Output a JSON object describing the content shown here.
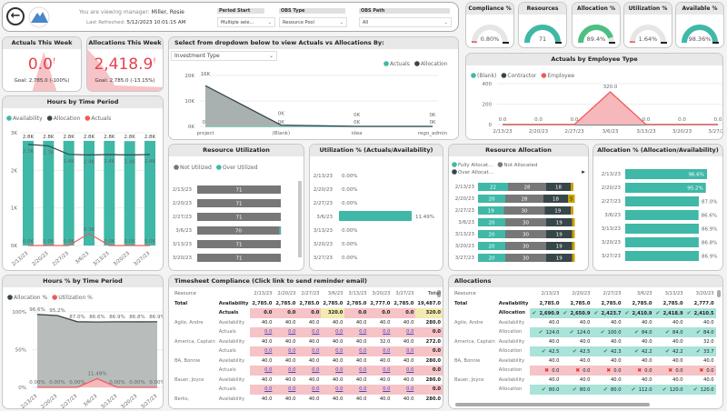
{
  "header": {
    "viewing_prefix": "You are viewing manager:",
    "manager": "Miller, Rosie",
    "refreshed_prefix": "Last Refreshed:",
    "refreshed": "5/12/2023 10:01:15 AM",
    "slicers": [
      {
        "label": "Period Start",
        "value": "Multiple sele..."
      },
      {
        "label": "OBS Type",
        "value": "Resource Pool"
      },
      {
        "label": "OBS Path",
        "value": "All"
      }
    ]
  },
  "kpis": [
    {
      "title": "Compliance %",
      "value": "0.80%",
      "fraction": 0.008,
      "color": "#e85c5c"
    },
    {
      "title": "Resources",
      "value": "71",
      "fraction": 1.0,
      "color": "#3fb8a7"
    },
    {
      "title": "Allocation %",
      "value": "89.4%",
      "fraction": 0.894,
      "color": "#4cbf82"
    },
    {
      "title": "Utilization %",
      "value": "1.64%",
      "fraction": 0.0164,
      "color": "#e85c5c"
    },
    {
      "title": "Available %",
      "value": "98.36%",
      "fraction": 0.9836,
      "color": "#3fb8a7"
    }
  ],
  "cards": [
    {
      "title": "Actuals This Week",
      "value": "0.0",
      "goal": "Goal: 2,785.0 (-100%)",
      "flag": "!"
    },
    {
      "title": "Allocations This Week",
      "value": "2,418.9",
      "goal": "Goal: 2,785.0 (-13.15%)",
      "flag": "!"
    }
  ],
  "colors": {
    "teal": "#3fb8a7",
    "dark": "#374649",
    "red": "#f05a5a",
    "gray": "#777777",
    "yellow": "#c9a100"
  },
  "dates": [
    "2/13/23",
    "2/20/23",
    "2/27/23",
    "3/6/23",
    "3/13/23",
    "3/20/23",
    "3/27/23"
  ],
  "chart_data": [
    {
      "id": "investment",
      "type": "area",
      "title": "Select from dropdown below to view Actuals vs Allocations By:",
      "dropdown": "Investment Type",
      "categories": [
        "project",
        "(Blank)",
        "idea",
        "rego_admin"
      ],
      "ylim": [
        0,
        20000
      ],
      "yticks": [
        "0K",
        "10K",
        "20K"
      ],
      "series": [
        {
          "name": "Actuals",
          "values": [
            0,
            0,
            0,
            0
          ],
          "labels": [
            "0K",
            "0K",
            "0K",
            "0K"
          ]
        },
        {
          "name": "Allocation",
          "values": [
            16000,
            500,
            0,
            0
          ],
          "labels": [
            "16K",
            "0K",
            "0K",
            "0K"
          ]
        }
      ]
    },
    {
      "id": "employee",
      "type": "area",
      "title": "Actuals by Employee Type",
      "ylim": [
        0,
        400
      ],
      "yticks": [
        "0",
        "200",
        "400"
      ],
      "series": [
        {
          "name": "(Blank)",
          "values": [
            0,
            0,
            0,
            0,
            0,
            0,
            0
          ]
        },
        {
          "name": "Contractor",
          "values": [
            0,
            0,
            0,
            0,
            0,
            0,
            0
          ]
        },
        {
          "name": "Employee",
          "values": [
            0,
            0,
            0,
            320,
            0,
            0,
            0
          ],
          "labels": [
            "0.0",
            "0.0",
            "0.0",
            "320.0",
            "0.0",
            "0.0",
            "0.0"
          ]
        }
      ]
    },
    {
      "id": "hours",
      "type": "bar+line",
      "title": "Hours by Time Period",
      "ylim": [
        0,
        3000
      ],
      "yticks": [
        "0K",
        "1K",
        "2K",
        "3K"
      ],
      "series": [
        {
          "name": "Availability",
          "values": [
            2785,
            2785,
            2785,
            2785,
            2785,
            2777,
            2785
          ],
          "labels": [
            "2.8K",
            "2.8K",
            "2.8K",
            "2.8K",
            "2.8K",
            "2.8K",
            "2.8K"
          ]
        },
        {
          "name": "Allocation",
          "values": [
            2690.9,
            2650.9,
            2423.7,
            2410.9,
            2418.9,
            2410.5,
            2418.9
          ],
          "labels": [
            "2.7K",
            "2.7K",
            "2.4K",
            "2.4K",
            "2.4K",
            "2.4K",
            "2.4K"
          ]
        },
        {
          "name": "Actuals",
          "values": [
            0,
            0,
            0,
            320,
            0,
            0,
            0
          ],
          "labels": [
            "0.0K",
            "0.0K",
            "0.0K",
            "0.3K",
            "0.0K",
            "0.0K",
            "0.0K"
          ]
        }
      ]
    },
    {
      "id": "resutil",
      "type": "stacked-bar",
      "title": "Resource Utilization",
      "categories": [
        "2/13/23",
        "2/20/23",
        "2/27/23",
        "3/6/23",
        "3/13/23",
        "3/20/23"
      ],
      "series": [
        {
          "name": "Not Utilized",
          "values": [
            71,
            71,
            71,
            70,
            71,
            71
          ]
        },
        {
          "name": "Over Utilized",
          "values": [
            0,
            0,
            0,
            1,
            0,
            0
          ]
        }
      ]
    },
    {
      "id": "utilpct",
      "type": "bar",
      "title": "Utilization % (Actuals/Availability)",
      "values": [
        0,
        0,
        0,
        11.49,
        0,
        0,
        0
      ],
      "labels": [
        "0.00%",
        "0.00%",
        "0.00%",
        "11.49%",
        "0.00%",
        "0.00%",
        "0.00%"
      ]
    },
    {
      "id": "resalloc",
      "type": "stacked-bar",
      "title": "Resource Allocation",
      "series": [
        {
          "name": "Fully Allocat...",
          "values": [
            22,
            20,
            19,
            20,
            20,
            20,
            20
          ]
        },
        {
          "name": "Not Allocated",
          "values": [
            28,
            28,
            30,
            30,
            30,
            30,
            30
          ]
        },
        {
          "name": "Over Allocat...",
          "values": [
            18,
            18,
            19,
            19,
            19,
            19,
            19
          ]
        },
        {
          "name": "",
          "values": [
            2,
            5,
            2,
            2,
            2,
            2,
            2
          ],
          "labels": [
            "",
            "5",
            "",
            "",
            "",
            "",
            ""
          ]
        }
      ]
    },
    {
      "id": "allocpct",
      "type": "bar",
      "title": "Allocation % (Allocation/Availability)",
      "values": [
        96.6,
        95.2,
        87.0,
        86.6,
        86.9,
        86.8,
        86.9
      ],
      "labels": [
        "96.6%",
        "95.2%",
        "87.0%",
        "86.6%",
        "86.9%",
        "86.8%",
        "86.9%"
      ]
    },
    {
      "id": "hourspct",
      "type": "area",
      "title": "Hours % by Time Period",
      "ylim": [
        0,
        100
      ],
      "yticks": [
        "0%",
        "50%",
        "100%"
      ],
      "series": [
        {
          "name": "Allocation %",
          "values": [
            96.6,
            95.2,
            87.0,
            86.6,
            86.9,
            86.8,
            86.9
          ],
          "labels": [
            "96.6%",
            "95.2%",
            "87.0%",
            "86.6%",
            "86.9%",
            "86.8%",
            "86.9%"
          ]
        },
        {
          "name": "Utilization %",
          "values": [
            0,
            0,
            0,
            11.49,
            0,
            0,
            0
          ],
          "labels": [
            "0.00%",
            "0.00%",
            "0.00%",
            "11.49%",
            "0.00%",
            "0.00%",
            "0.00%"
          ]
        }
      ]
    }
  ],
  "timesheet": {
    "title": "Timesheet Compliance (Click link to send reminder email)",
    "columns": [
      "Resource",
      "",
      "2/13/23",
      "2/20/23",
      "2/27/23",
      "3/6/23",
      "3/13/23",
      "3/20/23",
      "3/27/23",
      "Total"
    ],
    "rows": [
      [
        "Total",
        "Availability",
        "2,785.0",
        "2,785.0",
        "2,785.0",
        "2,785.0",
        "2,785.0",
        "2,777.0",
        "2,785.0",
        "19,487.0"
      ],
      [
        "",
        "Actuals",
        "0.0",
        "0.0",
        "0.0",
        "320.0",
        "0.0",
        "0.0",
        "0.0",
        "320.0"
      ],
      [
        "Agile, Andre",
        "Availability",
        "40.0",
        "40.0",
        "40.0",
        "40.0",
        "40.0",
        "40.0",
        "40.0",
        "280.0"
      ],
      [
        "",
        "Actuals",
        "0.0",
        "0.0",
        "0.0",
        "0.0",
        "0.0",
        "0.0",
        "0.0",
        "0.0"
      ],
      [
        "America, Captain",
        "Availability",
        "40.0",
        "40.0",
        "40.0",
        "40.0",
        "40.0",
        "32.0",
        "40.0",
        "272.0"
      ],
      [
        "",
        "Actuals",
        "0.0",
        "0.0",
        "0.0",
        "0.0",
        "0.0",
        "0.0",
        "0.0",
        "0.0"
      ],
      [
        "BA, Bonnie",
        "Availability",
        "40.0",
        "40.0",
        "40.0",
        "40.0",
        "40.0",
        "40.0",
        "40.0",
        "280.0"
      ],
      [
        "",
        "Actuals",
        "0.0",
        "0.0",
        "0.0",
        "0.0",
        "0.0",
        "0.0",
        "0.0",
        "0.0"
      ],
      [
        "Bauer, Joyce",
        "Availability",
        "40.0",
        "40.0",
        "40.0",
        "40.0",
        "40.0",
        "40.0",
        "40.0",
        "280.0"
      ],
      [
        "",
        "Actuals",
        "0.0",
        "0.0",
        "0.0",
        "0.0",
        "0.0",
        "0.0",
        "0.0",
        "0.0"
      ],
      [
        "Berks,",
        "Availability",
        "40.0",
        "40.0",
        "40.0",
        "40.0",
        "40.0",
        "40.0",
        "40.0",
        "280.0"
      ]
    ]
  },
  "allocations": {
    "title": "Allocations",
    "columns": [
      "Resource",
      "",
      "2/13/23",
      "2/20/23",
      "2/27/23",
      "3/6/23",
      "3/13/23",
      "3/20/23"
    ],
    "rows": [
      [
        "Total",
        "Availability",
        "2,785.0",
        "2,785.0",
        "2,785.0",
        "2,785.0",
        "2,785.0",
        "2,777.0"
      ],
      [
        "",
        "Allocation",
        "✔ 2,690.9",
        "✔ 2,650.9",
        "✔ 2,423.7",
        "✔ 2,410.9",
        "✔ 2,418.9",
        "✔ 2,410.5"
      ],
      [
        "Agile, Andre",
        "Availability",
        "40.0",
        "40.0",
        "40.0",
        "40.0",
        "40.0",
        "40.0"
      ],
      [
        "",
        "Allocation",
        "✔ 124.0",
        "✔ 124.0",
        "✔ 100.0",
        "✔ 84.0",
        "✔ 84.0",
        "✔ 84.0"
      ],
      [
        "America, Captain",
        "Availability",
        "40.0",
        "40.0",
        "40.0",
        "40.0",
        "40.0",
        "32.0"
      ],
      [
        "",
        "Allocation",
        "✔ 42.5",
        "✔ 42.5",
        "✔ 42.3",
        "✔ 42.2",
        "✔ 42.2",
        "✔ 33.7"
      ],
      [
        "BA, Bonnie",
        "Availability",
        "40.0",
        "40.0",
        "40.0",
        "40.0",
        "40.0",
        "40.0"
      ],
      [
        "",
        "Allocation",
        "✖ 0.0",
        "✖ 0.0",
        "✖ 0.0",
        "✖ 0.0",
        "✖ 0.0",
        "✖ 0.0"
      ],
      [
        "Bauer, Joyce",
        "Availability",
        "40.0",
        "40.0",
        "40.0",
        "40.0",
        "40.0",
        "40.0"
      ],
      [
        "",
        "Allocation",
        "✔ 80.0",
        "✔ 80.0",
        "✔ 80.0",
        "✔ 112.0",
        "✔ 120.0",
        "✔ 120.0"
      ]
    ]
  }
}
